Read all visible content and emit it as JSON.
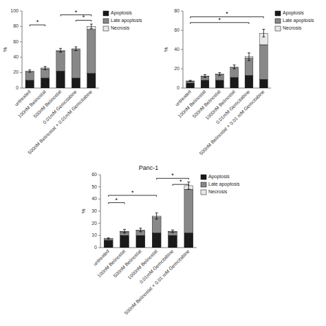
{
  "chart_data": [
    {
      "type": "bar",
      "stacked": true,
      "y_label": "%",
      "categories": [
        "untreated",
        "100nM Belinostat",
        "500nM Belinostat",
        "0.01mM Gemcitabine",
        "500nM Belinostat + 0.01mM Gemcitabine"
      ],
      "series": [
        {
          "name": "Apoptosis",
          "color": "#1a1a1a",
          "values": [
            10,
            13,
            22,
            13,
            19
          ]
        },
        {
          "name": "Late apoptosis",
          "color": "#888888",
          "values": [
            11,
            12,
            26,
            37,
            57
          ]
        },
        {
          "name": "Necrosis",
          "color": "#e8e8e8",
          "values": [
            1,
            1,
            1,
            1,
            4
          ]
        }
      ],
      "errors": [
        1.5,
        2.0,
        2.5,
        2.5,
        3.0
      ],
      "annotations": [
        {
          "text": "*",
          "from": 0,
          "to": 1,
          "y": 82
        },
        {
          "text": "*",
          "from": 2,
          "to": 4,
          "y": 95
        },
        {
          "text": "*",
          "from": 3,
          "to": 4,
          "y": 88
        }
      ],
      "ylim": [
        0,
        100
      ],
      "yticks": [
        0,
        20,
        40,
        60,
        80,
        100
      ],
      "legend": "right"
    },
    {
      "type": "bar",
      "stacked": true,
      "y_label": "%",
      "categories": [
        "untreated",
        "100nM Belinostat",
        "500nM Belinostat",
        "1000nM Belinostat",
        "0.01mM Gemcitabine",
        "500nM Belinostat + 0.01 mM Gemcitabine"
      ],
      "series": [
        {
          "name": "Apoptosis",
          "color": "#1a1a1a",
          "values": [
            5,
            8,
            8,
            11,
            13,
            9
          ]
        },
        {
          "name": "Late apoptosis",
          "color": "#888888",
          "values": [
            2,
            4,
            6,
            10,
            18,
            36
          ]
        },
        {
          "name": "Necrosis",
          "color": "#e8e8e8",
          "values": [
            0.5,
            0.5,
            0.5,
            1,
            1.5,
            12
          ]
        }
      ],
      "errors": [
        0.5,
        1.5,
        1.5,
        2.0,
        4.0,
        4.0
      ],
      "annotations": [
        {
          "text": "*",
          "from": 0,
          "to": 4,
          "y": 68
        },
        {
          "text": "*",
          "from": 0,
          "to": 5,
          "y": 74
        }
      ],
      "ylim": [
        0,
        80
      ],
      "yticks": [
        0,
        20,
        40,
        60,
        80
      ],
      "legend": "right"
    },
    {
      "type": "bar",
      "stacked": true,
      "title": "Panc-1",
      "y_label": "%",
      "categories": [
        "untreated",
        "100nM Belinostat",
        "500nM Belinostat",
        "1000nM Belinostat",
        "0.01mM Gemcitabine",
        "500nM Belinostat + 0.01 mM Gemcitabine"
      ],
      "series": [
        {
          "name": "Apoptosis",
          "color": "#1a1a1a",
          "values": [
            6,
            10,
            10,
            12,
            10,
            12
          ]
        },
        {
          "name": "Late apoptosis",
          "color": "#888888",
          "values": [
            1,
            3,
            4,
            13,
            3,
            36
          ]
        },
        {
          "name": "Necrosis",
          "color": "#e8e8e8",
          "values": [
            0.5,
            0.5,
            0.5,
            1,
            0.5,
            3
          ]
        }
      ],
      "errors": [
        0.5,
        1.5,
        1.5,
        2.5,
        1.0,
        3.0
      ],
      "annotations": [
        {
          "text": "*",
          "from": 0,
          "to": 1,
          "y": 37
        },
        {
          "text": "*",
          "from": 0,
          "to": 3,
          "y": 43
        },
        {
          "text": "*",
          "from": 3,
          "to": 5,
          "y": 57
        },
        {
          "text": "*",
          "from": 4,
          "to": 5,
          "y": 52
        }
      ],
      "ylim": [
        0,
        60
      ],
      "yticks": [
        0,
        10,
        20,
        30,
        40,
        50,
        60
      ],
      "legend": "right"
    }
  ]
}
